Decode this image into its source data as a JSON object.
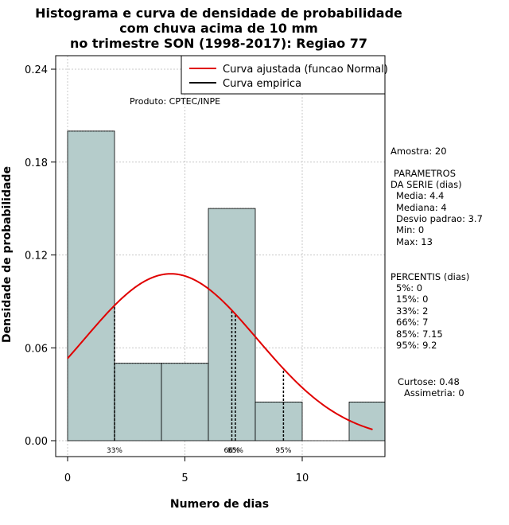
{
  "title_lines": [
    "Histograma e curva de densidade de probabilidade",
    "com chuva acima de 10 mm",
    "no trimestre SON (1998-2017): Regiao 77"
  ],
  "chart_data": {
    "type": "bar",
    "title": "Histograma e curva de densidade de probabilidade com chuva acima de 10 mm no trimestre SON (1998-2017): Regiao 77",
    "xlabel": "Numero de dias",
    "ylabel": "Densidade de probabilidade",
    "xlim": [
      -0.5,
      13.5
    ],
    "ylim": [
      0,
      0.24
    ],
    "x_ticks": [
      0,
      5,
      10
    ],
    "y_ticks": [
      0.0,
      0.06,
      0.12,
      0.18,
      0.24
    ],
    "y_tick_labels": [
      "0.00",
      "0.06",
      "0.12",
      "0.18",
      "0.24"
    ],
    "grid": true,
    "bars": [
      {
        "x0": 0,
        "x1": 2,
        "density": 0.2
      },
      {
        "x0": 2,
        "x1": 4,
        "density": 0.05
      },
      {
        "x0": 4,
        "x1": 6,
        "density": 0.05
      },
      {
        "x0": 6,
        "x1": 8,
        "density": 0.15
      },
      {
        "x0": 8,
        "x1": 10,
        "density": 0.025
      },
      {
        "x0": 10,
        "x1": 12,
        "density": 0.0
      },
      {
        "x0": 12,
        "x1": 14,
        "density": 0.025
      }
    ],
    "normal_curve": {
      "mean": 4.4,
      "sd": 3.7,
      "x_range": [
        0,
        13
      ],
      "color": "#e00000"
    },
    "percentile_markers": [
      {
        "x": 2,
        "label": "33%"
      },
      {
        "x": 7,
        "label": "66%"
      },
      {
        "x": 7.15,
        "label": "85%"
      },
      {
        "x": 9.2,
        "label": "95%"
      }
    ],
    "legend": {
      "position": "top-right",
      "entries": [
        {
          "label": "Curva ajustada (funcao Normal)",
          "color": "#e00000"
        },
        {
          "label": "Curva empirica",
          "color": "#000000"
        }
      ]
    },
    "bar_fill": "#b5cccb"
  },
  "product_label": "Produto: CPTEC/INPE",
  "side_panel": {
    "sample": "Amostra: 20",
    "params_title_1": "PARAMETROS",
    "params_title_2": "DA SERIE (dias)",
    "params": [
      "Media: 4.4",
      "Mediana: 4",
      "Desvio padrao: 3.7",
      "Min: 0",
      "Max: 13"
    ],
    "percentis_title": "PERCENTIS (dias)",
    "percentis": [
      "5%: 0",
      "15%: 0",
      "33%: 2",
      "66%: 7",
      "85%: 7.15",
      "95%: 9.2"
    ],
    "kurtosis": "Curtose: 0.48",
    "skewness": "Assimetria: 0"
  }
}
